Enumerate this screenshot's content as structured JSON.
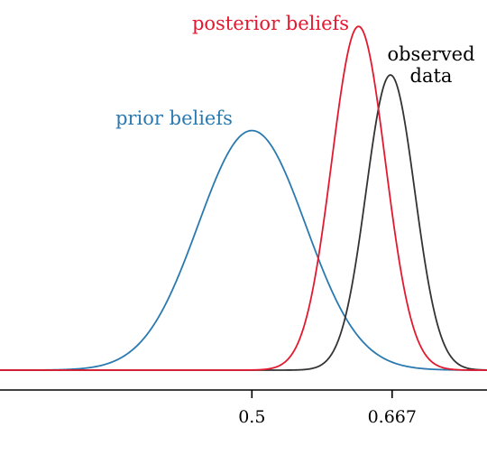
{
  "chart_data": {
    "type": "line",
    "title": "",
    "xlabel": "",
    "ylabel": "",
    "xlim": [
      0.2,
      0.78
    ],
    "ylim": [
      0,
      1.04
    ],
    "grid": false,
    "legend": "none",
    "x_ticks": [
      {
        "value": 0.5,
        "label": "0.5"
      },
      {
        "value": 0.667,
        "label": "0.667"
      }
    ],
    "series": [
      {
        "name": "prior beliefs",
        "color": "#2a7ab0",
        "mean": 0.5,
        "sd": 0.064,
        "peak": 0.69
      },
      {
        "name": "posterior beliefs",
        "color": "#e3192f",
        "mean": 0.627,
        "sd": 0.032,
        "peak": 0.99
      },
      {
        "name": "observed data",
        "color": "#333333",
        "mean": 0.665,
        "sd": 0.029,
        "peak": 0.85
      }
    ],
    "annotations": [
      {
        "series": 0,
        "lines": [
          "prior beliefs"
        ]
      },
      {
        "series": 1,
        "lines": [
          "posterior beliefs"
        ]
      },
      {
        "series": 2,
        "lines": [
          "observed",
          "data"
        ]
      }
    ]
  }
}
